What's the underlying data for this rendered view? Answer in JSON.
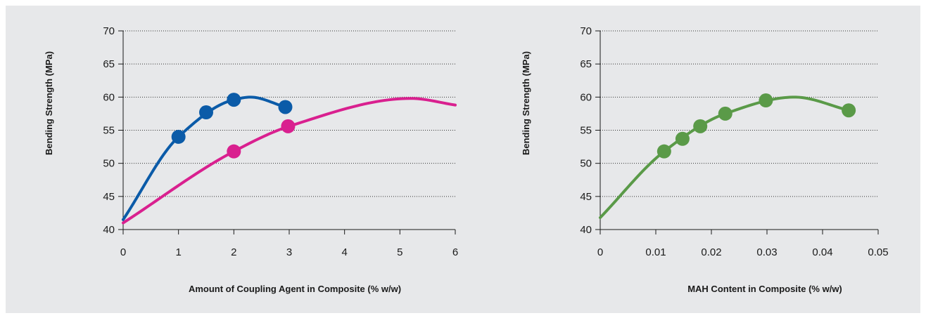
{
  "chart_data": [
    {
      "type": "scatter",
      "title": "",
      "xlabel": "Amount of Coupling Agent in Composite (% w/w)",
      "ylabel": "Bending Strength (MPa)",
      "xlim": [
        0,
        6
      ],
      "ylim": [
        40,
        70
      ],
      "xticks": [
        0,
        1,
        2,
        3,
        4,
        5,
        6
      ],
      "yticks": [
        40,
        45,
        50,
        55,
        60,
        65,
        70
      ],
      "grid": "horizontal dotted",
      "series": [
        {
          "color": "#0b5ba8",
          "points": [
            [
              1,
              54
            ],
            [
              1.5,
              57.7
            ],
            [
              2,
              59.6
            ],
            [
              2.93,
              58.5
            ]
          ],
          "fit_curve": {
            "x_range": [
              0,
              2.93
            ],
            "y_at": [
              [
                0,
                41.5
              ],
              [
                1,
                54
              ],
              [
                2,
                59.6
              ],
              [
                2.3,
                60
              ],
              [
                2.93,
                58.5
              ]
            ]
          }
        },
        {
          "color": "#d9208f",
          "points": [
            [
              2,
              51.8
            ],
            [
              2.98,
              55.6
            ]
          ],
          "fit_curve": {
            "x_range": [
              0,
              6
            ],
            "y_at": [
              [
                0,
                41
              ],
              [
                2,
                51.8
              ],
              [
                3,
                55.6
              ],
              [
                5.2,
                59.8
              ],
              [
                6,
                58.8
              ]
            ]
          }
        }
      ]
    },
    {
      "type": "scatter",
      "title": "",
      "xlabel": "MAH Content in Composite (% w/w)",
      "ylabel": "Bending Strength (MPa)",
      "xlim": [
        0,
        0.05
      ],
      "ylim": [
        40,
        70
      ],
      "xticks": [
        "0",
        "0.01",
        "0.02",
        "0.03",
        "0.04",
        "0.05"
      ],
      "yticks": [
        40,
        45,
        50,
        55,
        60,
        65,
        70
      ],
      "grid": "horizontal dotted",
      "series": [
        {
          "color": "#5a9a48",
          "points": [
            [
              0.0115,
              51.8
            ],
            [
              0.0148,
              53.7
            ],
            [
              0.018,
              55.6
            ],
            [
              0.0225,
              57.5
            ],
            [
              0.0298,
              59.5
            ],
            [
              0.0447,
              58
            ]
          ],
          "fit_curve": {
            "x_range": [
              0,
              0.0447
            ],
            "y_at": [
              [
                0,
                41.8
              ],
              [
                0.0115,
                51.8
              ],
              [
                0.0225,
                57.5
              ],
              [
                0.035,
                60
              ],
              [
                0.0447,
                58
              ]
            ]
          }
        }
      ]
    }
  ]
}
